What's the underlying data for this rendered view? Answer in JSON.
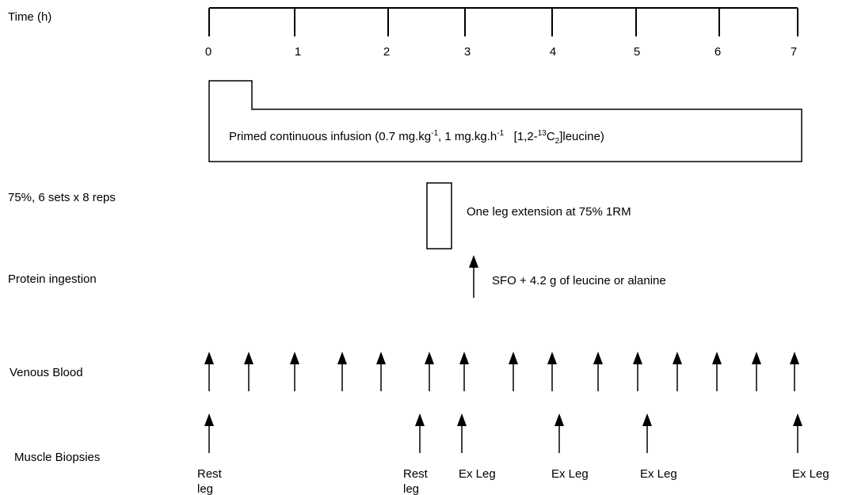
{
  "row_labels": {
    "time": "Time (h)",
    "exercise": "75%, 6 sets x 8 reps",
    "protein": "Protein ingestion",
    "blood": "Venous Blood",
    "biopsies": "Muscle Biopsies"
  },
  "timeline": {
    "ticks": [
      "0",
      "1",
      "2",
      "3",
      "4",
      "5",
      "6",
      "7"
    ]
  },
  "infusion": {
    "text_a": "Primed continuous infusion (0.7 mg.kg",
    "sup_a": "-1",
    "text_b": ", 1 mg.kg.h",
    "sup_b": "-1",
    "text_c": "   [1,2-",
    "sup_c": "13",
    "text_d": "C",
    "sub_d": "2",
    "text_e": "]leucine)"
  },
  "exercise": {
    "label": "One leg extension at 75% 1RM"
  },
  "protein": {
    "label": "SFO + 4.2 g of leucine or alanine"
  },
  "blood_samples": {
    "count": 16
  },
  "biopsies": [
    {
      "line1": "Rest",
      "line2": "leg"
    },
    {
      "line1": "Rest",
      "line2": "leg"
    },
    {
      "line1": "Ex Leg",
      "line2": ""
    },
    {
      "line1": "Ex Leg",
      "line2": ""
    },
    {
      "line1": "Ex Leg",
      "line2": ""
    },
    {
      "line1": "Ex Leg",
      "line2": ""
    }
  ],
  "colors": {
    "stroke": "#000000",
    "background": "#ffffff"
  }
}
